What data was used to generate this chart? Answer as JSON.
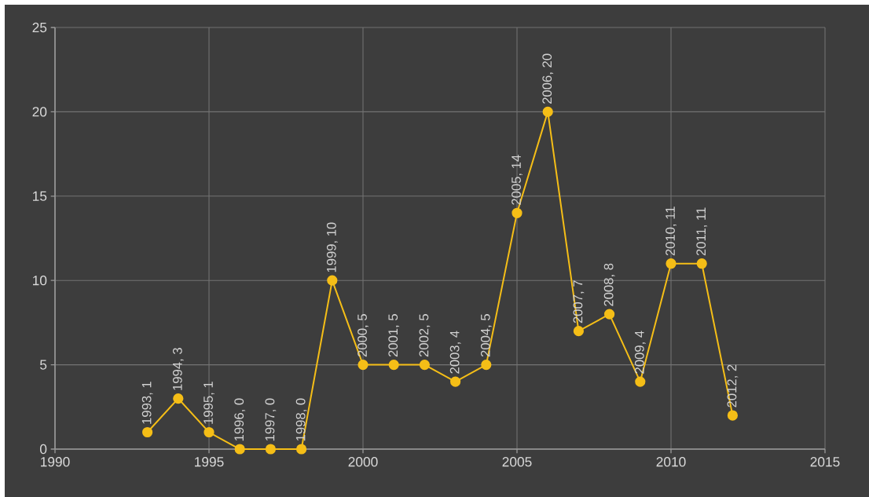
{
  "chart_data": {
    "type": "line",
    "color": "#f5be17",
    "marker": "circle",
    "line_style": "solid",
    "grid": true,
    "x": [
      1993,
      1994,
      1995,
      1996,
      1997,
      1998,
      1999,
      2000,
      2001,
      2002,
      2003,
      2004,
      2005,
      2006,
      2007,
      2008,
      2009,
      2010,
      2011,
      2012
    ],
    "values": [
      1,
      3,
      1,
      0,
      0,
      0,
      10,
      5,
      5,
      5,
      4,
      5,
      14,
      20,
      7,
      8,
      4,
      11,
      11,
      2
    ],
    "value_labels": [
      "1993, 1",
      "1994, 3",
      "1995, 1",
      "1996, 0",
      "1997, 0",
      "1998, 0",
      "1999, 10",
      "2000, 5",
      "2001, 5",
      "2002, 5",
      "2003, 4",
      "2004, 5",
      "2005, 14",
      "2006, 20",
      "2007, 7",
      "2008, 8",
      "2009, 4",
      "2010, 11",
      "2011, 11",
      "2012, 2"
    ],
    "xlim": [
      1990,
      2015
    ],
    "xticks": [
      1990,
      1995,
      2000,
      2005,
      2010,
      2015
    ],
    "ylim": [
      0,
      25
    ],
    "yticks": [
      0,
      5,
      10,
      15,
      20,
      25
    ]
  }
}
